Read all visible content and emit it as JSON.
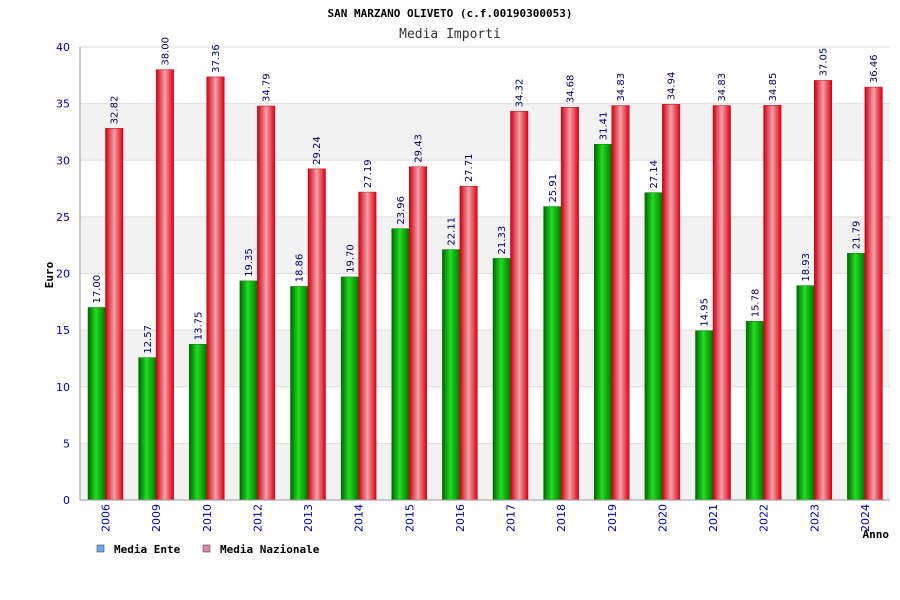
{
  "chart_data": {
    "type": "bar",
    "title": "SAN MARZANO OLIVETO (c.f.00190300053)",
    "subtitle": "Media Importi",
    "xlabel": "Anno",
    "ylabel": "Euro",
    "ylim": [
      0,
      40
    ],
    "yticks": [
      0,
      5,
      10,
      15,
      20,
      25,
      30,
      35,
      40
    ],
    "grid": true,
    "legend_position": "bottom-left",
    "categories": [
      "2006",
      "2009",
      "2010",
      "2012",
      "2013",
      "2014",
      "2015",
      "2016",
      "2017",
      "2018",
      "2019",
      "2020",
      "2021",
      "2022",
      "2023",
      "2024"
    ],
    "series": [
      {
        "name": "Media Ente",
        "color": "#00aa00",
        "legend_color": "#66aaee",
        "values": [
          17.0,
          12.57,
          13.75,
          19.35,
          18.86,
          19.7,
          23.96,
          22.11,
          21.33,
          25.91,
          31.41,
          27.14,
          14.95,
          15.78,
          18.93,
          21.79
        ],
        "labels": [
          "17.00",
          "12.57",
          "13.75",
          "19.35",
          "18.86",
          "19.70",
          "23.96",
          "22.11",
          "21.33",
          "25.91",
          "31.41",
          "27.14",
          "14.95",
          "15.78",
          "18.93",
          "21.79"
        ]
      },
      {
        "name": "Media Nazionale",
        "color": "#ee1122",
        "legend_color": "#dd88aa",
        "values": [
          32.82,
          38.0,
          37.36,
          34.79,
          29.24,
          27.19,
          29.43,
          27.71,
          34.32,
          34.68,
          34.83,
          34.94,
          34.83,
          34.85,
          37.05,
          36.46
        ],
        "labels": [
          "32.82",
          "38.00",
          "37.36",
          "34.79",
          "29.24",
          "27.19",
          "29.43",
          "27.71",
          "34.32",
          "34.68",
          "34.83",
          "34.94",
          "34.83",
          "34.85",
          "37.05",
          "36.46"
        ]
      }
    ]
  }
}
